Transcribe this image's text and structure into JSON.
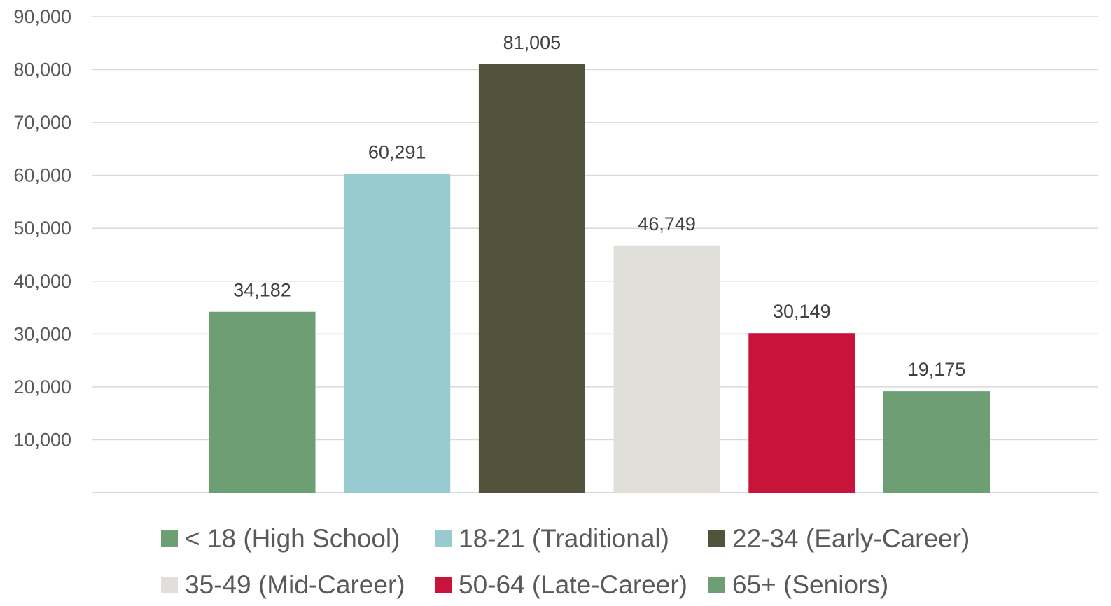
{
  "chart_data": {
    "type": "bar",
    "categories": [
      "< 18 (High School)",
      "18-21 (Traditional)",
      "22-34 (Early-Career)",
      "35-49 (Mid-Career)",
      "50-64 (Late-Career)",
      "65+ (Seniors)"
    ],
    "values": [
      34182,
      60291,
      81005,
      46749,
      30149,
      19175
    ],
    "data_labels": [
      "34,182",
      "60,291",
      "81,005",
      "46,749",
      "30,149",
      "19,175"
    ],
    "colors": [
      "#6e9e73",
      "#98cbcf",
      "#51533a",
      "#e0dfda",
      "#c8133a",
      "#6e9e73"
    ],
    "yticks": [
      "10,000",
      "20,000",
      "30,000",
      "40,000",
      "50,000",
      "60,000",
      "70,000",
      "80,000",
      "90,000"
    ],
    "ylim": [
      0,
      90000
    ],
    "grid": true,
    "legend_position": "bottom",
    "legend": [
      {
        "label": "< 18 (High School)",
        "color": "#6e9e73"
      },
      {
        "label": "18-21 (Traditional)",
        "color": "#98cbcf"
      },
      {
        "label": "22-34 (Early-Career)",
        "color": "#51533a"
      },
      {
        "label": "35-49 (Mid-Career)",
        "color": "#e0dfda"
      },
      {
        "label": "50-64 (Late-Career)",
        "color": "#c8133a"
      },
      {
        "label": "65+ (Seniors)",
        "color": "#6e9e73"
      }
    ]
  }
}
